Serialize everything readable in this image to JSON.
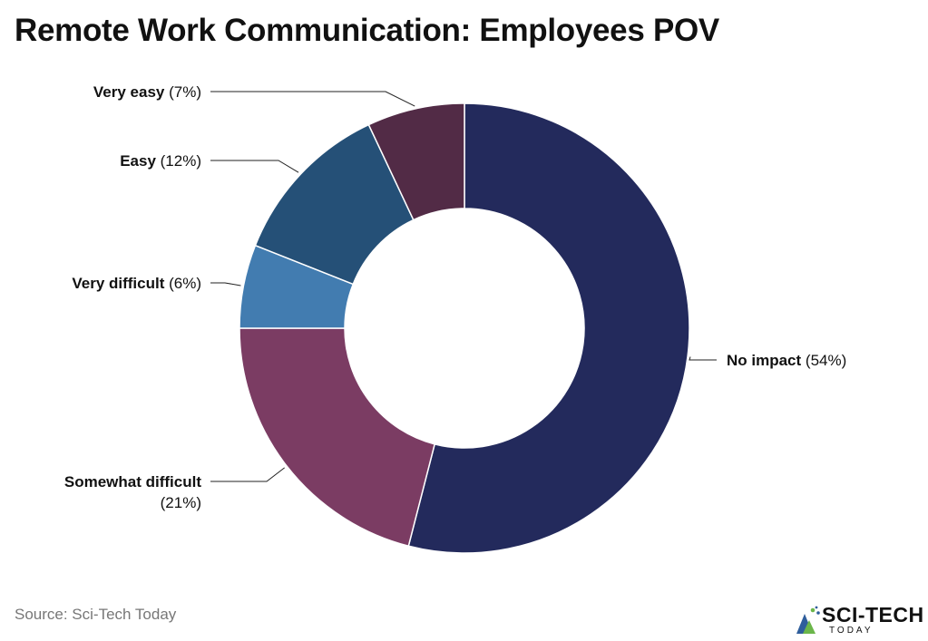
{
  "title": "Remote Work Communication: Employees POV",
  "source": "Source: Sci-Tech Today",
  "logo": {
    "main": "SCI-TECH",
    "sub": "TODAY"
  },
  "chart_data": {
    "type": "pie",
    "variant": "donut",
    "title": "Remote Work Communication: Employees POV",
    "slices": [
      {
        "label": "No impact",
        "value": 54,
        "value_label": "(54%)",
        "color": "#232a5c"
      },
      {
        "label": "Somewhat difficult",
        "value": 21,
        "value_label": "(21%)",
        "color": "#7b3c63"
      },
      {
        "label": "Very difficult",
        "value": 6,
        "value_label": "(6%)",
        "color": "#427cb0"
      },
      {
        "label": "Easy",
        "value": 12,
        "value_label": "(12%)",
        "color": "#255077"
      },
      {
        "label": "Very easy",
        "value": 7,
        "value_label": "(7%)",
        "color": "#522b46"
      }
    ],
    "start_angle": "12 o'clock",
    "direction": "clockwise",
    "legend": "none (leader-line labels)"
  }
}
